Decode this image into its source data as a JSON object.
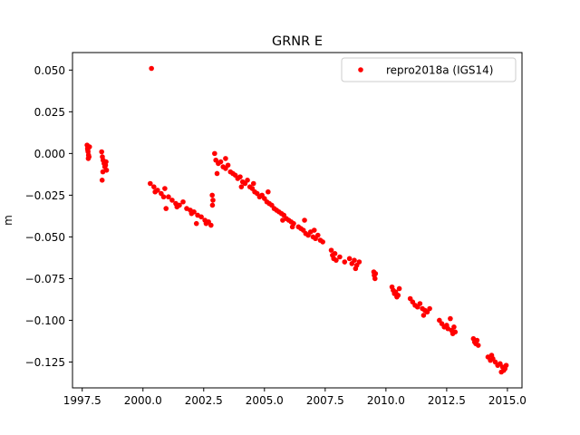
{
  "chart_data": {
    "type": "scatter",
    "title": "GRNR E",
    "xlabel": "",
    "ylabel": "m",
    "xlim": [
      1997.1,
      2015.6
    ],
    "ylim": [
      -0.1405,
      0.0605
    ],
    "xticks": [
      1997.5,
      2000.0,
      2002.5,
      2005.0,
      2007.5,
      2010.0,
      2012.5,
      2015.0
    ],
    "xtick_labels": [
      "1997.5",
      "2000.0",
      "2002.5",
      "2005.0",
      "2007.5",
      "2010.0",
      "2012.5",
      "2015.0"
    ],
    "yticks": [
      0.05,
      0.025,
      0.0,
      -0.025,
      -0.05,
      -0.075,
      -0.1,
      -0.125
    ],
    "ytick_labels": [
      "0.050",
      "0.025",
      "0.000",
      "−0.025",
      "−0.050",
      "−0.075",
      "−0.100",
      "−0.125"
    ],
    "grid": false,
    "legend_position": "top-right",
    "series": [
      {
        "name": "repro2018a (IGS14)",
        "color": "#ff0000",
        "marker": "circle",
        "points": [
          [
            1997.7,
            0.005
          ],
          [
            1997.72,
            0.003
          ],
          [
            1997.74,
            0.001
          ],
          [
            1997.76,
            -0.001
          ],
          [
            1997.78,
            -0.002
          ],
          [
            1997.8,
            0.004
          ],
          [
            1997.75,
            -0.003
          ],
          [
            1997.73,
            0.002
          ],
          [
            1998.3,
            0.001
          ],
          [
            1998.33,
            -0.002
          ],
          [
            1998.36,
            -0.004
          ],
          [
            1998.4,
            -0.006
          ],
          [
            1998.43,
            -0.008
          ],
          [
            1998.46,
            -0.007
          ],
          [
            1998.5,
            -0.01
          ],
          [
            1998.35,
            -0.011
          ],
          [
            1998.32,
            -0.016
          ],
          [
            1998.48,
            -0.005
          ],
          [
            2000.35,
            0.051
          ],
          [
            2000.3,
            -0.018
          ],
          [
            2000.45,
            -0.02
          ],
          [
            2000.6,
            -0.022
          ],
          [
            2000.75,
            -0.024
          ],
          [
            2000.9,
            -0.021
          ],
          [
            2001.05,
            -0.026
          ],
          [
            2001.2,
            -0.028
          ],
          [
            2001.35,
            -0.03
          ],
          [
            2001.5,
            -0.031
          ],
          [
            2001.65,
            -0.029
          ],
          [
            2001.8,
            -0.033
          ],
          [
            2001.95,
            -0.034
          ],
          [
            2002.1,
            -0.035
          ],
          [
            2002.25,
            -0.037
          ],
          [
            2002.4,
            -0.038
          ],
          [
            2002.55,
            -0.04
          ],
          [
            2002.7,
            -0.041
          ],
          [
            2002.8,
            -0.043
          ],
          [
            2000.5,
            -0.023
          ],
          [
            2000.85,
            -0.026
          ],
          [
            2001.4,
            -0.032
          ],
          [
            2002.0,
            -0.036
          ],
          [
            2002.6,
            -0.042
          ],
          [
            2000.95,
            -0.033
          ],
          [
            2002.2,
            -0.042
          ],
          [
            2002.85,
            -0.025
          ],
          [
            2002.86,
            -0.031
          ],
          [
            2002.88,
            -0.028
          ],
          [
            2002.95,
            0.0
          ],
          [
            2003.0,
            -0.004
          ],
          [
            2003.1,
            -0.006
          ],
          [
            2003.2,
            -0.005
          ],
          [
            2003.3,
            -0.008
          ],
          [
            2003.4,
            -0.009
          ],
          [
            2003.5,
            -0.007
          ],
          [
            2003.6,
            -0.011
          ],
          [
            2003.7,
            -0.012
          ],
          [
            2003.8,
            -0.013
          ],
          [
            2003.9,
            -0.015
          ],
          [
            2004.0,
            -0.014
          ],
          [
            2004.1,
            -0.017
          ],
          [
            2004.2,
            -0.018
          ],
          [
            2004.3,
            -0.016
          ],
          [
            2004.4,
            -0.02
          ],
          [
            2004.5,
            -0.021
          ],
          [
            2004.6,
            -0.023
          ],
          [
            2004.7,
            -0.024
          ],
          [
            2004.8,
            -0.026
          ],
          [
            2004.9,
            -0.025
          ],
          [
            2005.0,
            -0.027
          ],
          [
            2005.1,
            -0.029
          ],
          [
            2005.2,
            -0.03
          ],
          [
            2005.3,
            -0.031
          ],
          [
            2005.4,
            -0.033
          ],
          [
            2005.5,
            -0.034
          ],
          [
            2005.6,
            -0.035
          ],
          [
            2005.7,
            -0.036
          ],
          [
            2005.8,
            -0.037
          ],
          [
            2005.9,
            -0.039
          ],
          [
            2006.0,
            -0.04
          ],
          [
            2006.1,
            -0.041
          ],
          [
            2006.2,
            -0.042
          ],
          [
            2003.05,
            -0.012
          ],
          [
            2003.4,
            -0.003
          ],
          [
            2004.05,
            -0.02
          ],
          [
            2004.55,
            -0.018
          ],
          [
            2005.15,
            -0.023
          ],
          [
            2005.75,
            -0.04
          ],
          [
            2006.15,
            -0.044
          ],
          [
            2006.4,
            -0.044
          ],
          [
            2006.5,
            -0.045
          ],
          [
            2006.6,
            -0.046
          ],
          [
            2006.7,
            -0.048
          ],
          [
            2006.8,
            -0.049
          ],
          [
            2006.9,
            -0.047
          ],
          [
            2007.0,
            -0.05
          ],
          [
            2007.1,
            -0.051
          ],
          [
            2007.2,
            -0.049
          ],
          [
            2007.3,
            -0.052
          ],
          [
            2007.4,
            -0.053
          ],
          [
            2006.65,
            -0.04
          ],
          [
            2007.05,
            -0.046
          ],
          [
            2007.75,
            -0.058
          ],
          [
            2007.8,
            -0.061
          ],
          [
            2007.85,
            -0.063
          ],
          [
            2007.9,
            -0.06
          ],
          [
            2007.95,
            -0.064
          ],
          [
            2008.1,
            -0.062
          ],
          [
            2008.3,
            -0.065
          ],
          [
            2008.5,
            -0.063
          ],
          [
            2008.6,
            -0.066
          ],
          [
            2008.7,
            -0.064
          ],
          [
            2008.8,
            -0.067
          ],
          [
            2008.9,
            -0.065
          ],
          [
            2008.75,
            -0.069
          ],
          [
            2009.5,
            -0.071
          ],
          [
            2009.52,
            -0.073
          ],
          [
            2009.55,
            -0.075
          ],
          [
            2009.57,
            -0.072
          ],
          [
            2010.25,
            -0.08
          ],
          [
            2010.3,
            -0.082
          ],
          [
            2010.35,
            -0.084
          ],
          [
            2010.4,
            -0.083
          ],
          [
            2010.45,
            -0.086
          ],
          [
            2010.5,
            -0.085
          ],
          [
            2010.55,
            -0.081
          ],
          [
            2011.0,
            -0.087
          ],
          [
            2011.1,
            -0.089
          ],
          [
            2011.2,
            -0.091
          ],
          [
            2011.3,
            -0.092
          ],
          [
            2011.4,
            -0.09
          ],
          [
            2011.5,
            -0.093
          ],
          [
            2011.6,
            -0.094
          ],
          [
            2011.7,
            -0.095
          ],
          [
            2011.8,
            -0.093
          ],
          [
            2011.55,
            -0.097
          ],
          [
            2012.2,
            -0.1
          ],
          [
            2012.3,
            -0.102
          ],
          [
            2012.4,
            -0.104
          ],
          [
            2012.5,
            -0.103
          ],
          [
            2012.55,
            -0.105
          ],
          [
            2012.7,
            -0.106
          ],
          [
            2012.75,
            -0.108
          ],
          [
            2012.8,
            -0.104
          ],
          [
            2012.85,
            -0.107
          ],
          [
            2012.65,
            -0.099
          ],
          [
            2013.6,
            -0.111
          ],
          [
            2013.65,
            -0.113
          ],
          [
            2013.7,
            -0.114
          ],
          [
            2013.75,
            -0.112
          ],
          [
            2013.8,
            -0.115
          ],
          [
            2014.2,
            -0.122
          ],
          [
            2014.3,
            -0.124
          ],
          [
            2014.4,
            -0.123
          ],
          [
            2014.5,
            -0.125
          ],
          [
            2014.6,
            -0.127
          ],
          [
            2014.7,
            -0.126
          ],
          [
            2014.8,
            -0.128
          ],
          [
            2014.85,
            -0.13
          ],
          [
            2014.9,
            -0.129
          ],
          [
            2014.95,
            -0.127
          ],
          [
            2014.75,
            -0.131
          ],
          [
            2014.35,
            -0.121
          ]
        ]
      }
    ]
  }
}
